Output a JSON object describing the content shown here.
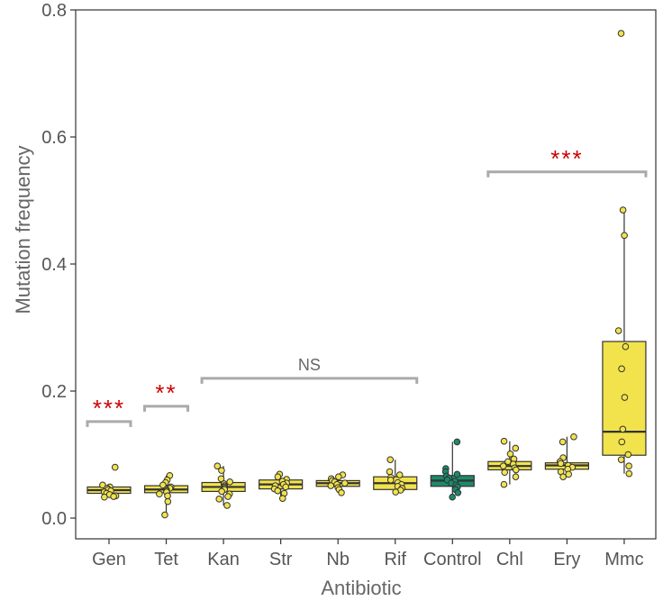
{
  "chart_data": {
    "type": "box",
    "title": "",
    "xlabel": "Antibiotic",
    "ylabel": "Mutation frequency",
    "ylim": [
      -0.03,
      0.8
    ],
    "yticks": [
      "0.0",
      "0.2",
      "0.4",
      "0.6",
      "0.8"
    ],
    "ytick_values": [
      0.0,
      0.2,
      0.4,
      0.6,
      0.8
    ],
    "grid": false,
    "categories": [
      "Gen",
      "Tet",
      "Kan",
      "Str",
      "Nb",
      "Rif",
      "Control",
      "Chl",
      "Ery",
      "Mmc"
    ],
    "colors": {
      "treatment": "#f2e34c",
      "control": "#1a8a6a",
      "outline": "#333333",
      "bracket": "#aaaaaa",
      "sig_red": "#cc0000",
      "text": "#555555"
    },
    "boxes": [
      {
        "name": "Gen",
        "q1": 0.039,
        "median": 0.044,
        "q3": 0.049,
        "whisker_low": 0.033,
        "whisker_high": 0.052,
        "points": [
          0.08,
          0.052,
          0.049,
          0.047,
          0.045,
          0.043,
          0.041,
          0.039,
          0.037,
          0.035,
          0.034,
          0.033
        ]
      },
      {
        "name": "Tet",
        "q1": 0.04,
        "median": 0.045,
        "q3": 0.051,
        "whisker_low": 0.005,
        "whisker_high": 0.067,
        "points": [
          0.067,
          0.06,
          0.056,
          0.052,
          0.049,
          0.047,
          0.045,
          0.043,
          0.041,
          0.038,
          0.035,
          0.026,
          0.005
        ]
      },
      {
        "name": "Kan",
        "q1": 0.042,
        "median": 0.049,
        "q3": 0.056,
        "whisker_low": 0.02,
        "whisker_high": 0.082,
        "points": [
          0.082,
          0.075,
          0.062,
          0.057,
          0.054,
          0.051,
          0.049,
          0.047,
          0.045,
          0.042,
          0.038,
          0.034,
          0.03,
          0.02
        ]
      },
      {
        "name": "Str",
        "q1": 0.046,
        "median": 0.053,
        "q3": 0.06,
        "whisker_low": 0.031,
        "whisker_high": 0.069,
        "points": [
          0.069,
          0.065,
          0.061,
          0.058,
          0.055,
          0.053,
          0.051,
          0.049,
          0.046,
          0.043,
          0.039,
          0.031
        ]
      },
      {
        "name": "Nb",
        "q1": 0.05,
        "median": 0.055,
        "q3": 0.059,
        "whisker_low": 0.04,
        "whisker_high": 0.068,
        "points": [
          0.068,
          0.065,
          0.062,
          0.059,
          0.057,
          0.055,
          0.053,
          0.051,
          0.048,
          0.045,
          0.04
        ]
      },
      {
        "name": "Rif",
        "q1": 0.045,
        "median": 0.055,
        "q3": 0.065,
        "whisker_low": 0.041,
        "whisker_high": 0.092,
        "points": [
          0.092,
          0.073,
          0.068,
          0.064,
          0.06,
          0.056,
          0.053,
          0.05,
          0.047,
          0.044,
          0.041
        ]
      },
      {
        "name": "Control",
        "q1": 0.05,
        "median": 0.059,
        "q3": 0.067,
        "whisker_low": 0.033,
        "whisker_high": 0.12,
        "points": [
          0.12,
          0.078,
          0.073,
          0.069,
          0.066,
          0.063,
          0.06,
          0.058,
          0.055,
          0.052,
          0.049,
          0.045,
          0.04,
          0.033
        ]
      },
      {
        "name": "Chl",
        "q1": 0.076,
        "median": 0.082,
        "q3": 0.089,
        "whisker_low": 0.053,
        "whisker_high": 0.121,
        "points": [
          0.121,
          0.11,
          0.101,
          0.093,
          0.089,
          0.085,
          0.082,
          0.079,
          0.076,
          0.072,
          0.065,
          0.053
        ]
      },
      {
        "name": "Ery",
        "q1": 0.077,
        "median": 0.083,
        "q3": 0.087,
        "whisker_low": 0.065,
        "whisker_high": 0.128,
        "points": [
          0.128,
          0.12,
          0.095,
          0.089,
          0.086,
          0.083,
          0.08,
          0.077,
          0.073,
          0.069,
          0.065
        ]
      },
      {
        "name": "Mmc",
        "q1": 0.099,
        "median": 0.136,
        "q3": 0.278,
        "whisker_low": 0.07,
        "whisker_high": 0.485,
        "points": [
          0.763,
          0.485,
          0.445,
          0.295,
          0.27,
          0.235,
          0.19,
          0.14,
          0.12,
          0.1,
          0.092,
          0.082,
          0.07
        ]
      }
    ],
    "annotations": [
      {
        "label": "***",
        "start": "Gen",
        "end": "Gen",
        "y": 0.152,
        "style": "red"
      },
      {
        "label": "**",
        "start": "Tet",
        "end": "Tet",
        "y": 0.176,
        "style": "red"
      },
      {
        "label": "NS",
        "start": "Kan",
        "end": "Rif",
        "y": 0.22,
        "style": "ns"
      },
      {
        "label": "***",
        "start": "Chl",
        "end": "Mmc",
        "y": 0.545,
        "style": "red"
      }
    ]
  }
}
